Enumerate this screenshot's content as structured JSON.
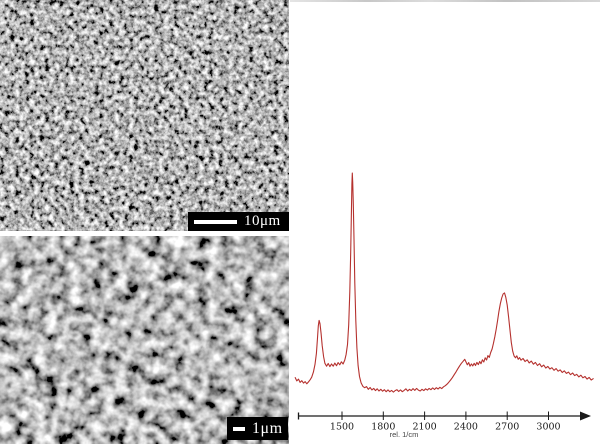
{
  "figure": {
    "sem_top": {
      "scale_bar_label": "10μm"
    },
    "sem_bottom": {
      "scale_bar_label": "1μm"
    }
  },
  "chart_data": {
    "type": "line",
    "title": "",
    "xlabel": "rel. 1/cm",
    "ylabel": "",
    "x_ticks": [
      1500,
      1800,
      2100,
      2400,
      2700,
      3000
    ],
    "xlim": [
      1160,
      3350
    ],
    "ylim": [
      0,
      110
    ],
    "grid": false,
    "legend": "none",
    "line_color": "#b5312e",
    "axis_color": "#1a1a1a",
    "series": [
      {
        "name": "Raman spectrum",
        "points": [
          [
            1160,
            7
          ],
          [
            1172,
            5.5
          ],
          [
            1184,
            6.3
          ],
          [
            1196,
            4.8
          ],
          [
            1208,
            5.6
          ],
          [
            1220,
            4.5
          ],
          [
            1232,
            5.2
          ],
          [
            1244,
            4.2
          ],
          [
            1256,
            5
          ],
          [
            1268,
            6
          ],
          [
            1280,
            7.2
          ],
          [
            1292,
            9.5
          ],
          [
            1304,
            13
          ],
          [
            1314,
            18
          ],
          [
            1322,
            25
          ],
          [
            1328,
            30.5
          ],
          [
            1334,
            33
          ],
          [
            1340,
            31.5
          ],
          [
            1348,
            27
          ],
          [
            1356,
            21.5
          ],
          [
            1366,
            16.5
          ],
          [
            1376,
            13.5
          ],
          [
            1388,
            12.2
          ],
          [
            1400,
            13.4
          ],
          [
            1412,
            12
          ],
          [
            1424,
            13.2
          ],
          [
            1436,
            12.2
          ],
          [
            1448,
            13.6
          ],
          [
            1460,
            12.4
          ],
          [
            1472,
            13.8
          ],
          [
            1484,
            12.8
          ],
          [
            1496,
            14.2
          ],
          [
            1508,
            13.2
          ],
          [
            1520,
            15
          ],
          [
            1530,
            17.5
          ],
          [
            1540,
            22
          ],
          [
            1549,
            31
          ],
          [
            1557,
            46
          ],
          [
            1563,
            64
          ],
          [
            1568,
            82
          ],
          [
            1572,
            95
          ],
          [
            1575,
            100
          ],
          [
            1578,
            96
          ],
          [
            1582,
            86
          ],
          [
            1587,
            70
          ],
          [
            1593,
            50
          ],
          [
            1600,
            33
          ],
          [
            1608,
            20.5
          ],
          [
            1617,
            12.5
          ],
          [
            1627,
            7.5
          ],
          [
            1639,
            4.6
          ],
          [
            1652,
            3
          ],
          [
            1665,
            2.4
          ],
          [
            1678,
            2.9
          ],
          [
            1691,
            1.7
          ],
          [
            1704,
            2.5
          ],
          [
            1717,
            1.4
          ],
          [
            1730,
            2.1
          ],
          [
            1743,
            1.1
          ],
          [
            1756,
            1.9
          ],
          [
            1769,
            0.9
          ],
          [
            1782,
            1.7
          ],
          [
            1795,
            0.8
          ],
          [
            1808,
            1.5
          ],
          [
            1821,
            0.6
          ],
          [
            1834,
            1.4
          ],
          [
            1847,
            0.6
          ],
          [
            1860,
            1.2
          ],
          [
            1873,
            0.4
          ],
          [
            1886,
            1.1
          ],
          [
            1899,
            1.5
          ],
          [
            1912,
            0.7
          ],
          [
            1925,
            1.4
          ],
          [
            1938,
            0.6
          ],
          [
            1951,
            1.2
          ],
          [
            1964,
            1.9
          ],
          [
            1977,
            0.9
          ],
          [
            1990,
            1.7
          ],
          [
            2003,
            1.1
          ],
          [
            2016,
            2
          ],
          [
            2029,
            1.2
          ],
          [
            2042,
            2.1
          ],
          [
            2055,
            1.3
          ],
          [
            2068,
            0.9
          ],
          [
            2081,
            1.7
          ],
          [
            2094,
            1.1
          ],
          [
            2107,
            1.9
          ],
          [
            2120,
            1.3
          ],
          [
            2133,
            2.1
          ],
          [
            2146,
            1.5
          ],
          [
            2159,
            2.3
          ],
          [
            2172,
            1.6
          ],
          [
            2185,
            2.4
          ],
          [
            2198,
            1.8
          ],
          [
            2211,
            2.6
          ],
          [
            2224,
            2
          ],
          [
            2237,
            2.8
          ],
          [
            2250,
            3.3
          ],
          [
            2263,
            4
          ],
          [
            2276,
            4.9
          ],
          [
            2289,
            5.9
          ],
          [
            2302,
            7
          ],
          [
            2315,
            8.3
          ],
          [
            2328,
            9.6
          ],
          [
            2341,
            11
          ],
          [
            2354,
            12.3
          ],
          [
            2367,
            13.5
          ],
          [
            2380,
            14.4
          ],
          [
            2391,
            15.3
          ],
          [
            2400,
            14.2
          ],
          [
            2410,
            12.8
          ],
          [
            2420,
            13.8
          ],
          [
            2430,
            12.2
          ],
          [
            2440,
            13.2
          ],
          [
            2450,
            12.3
          ],
          [
            2460,
            13.5
          ],
          [
            2470,
            12.5
          ],
          [
            2480,
            13.9
          ],
          [
            2490,
            12.9
          ],
          [
            2500,
            14.3
          ],
          [
            2510,
            13.3
          ],
          [
            2520,
            15.1
          ],
          [
            2530,
            14.1
          ],
          [
            2540,
            16
          ],
          [
            2550,
            15
          ],
          [
            2560,
            17
          ],
          [
            2570,
            16.2
          ],
          [
            2580,
            18.4
          ],
          [
            2590,
            20
          ],
          [
            2600,
            22.5
          ],
          [
            2610,
            25.5
          ],
          [
            2620,
            29
          ],
          [
            2630,
            33
          ],
          [
            2640,
            37
          ],
          [
            2650,
            40.5
          ],
          [
            2660,
            43.2
          ],
          [
            2670,
            45
          ],
          [
            2680,
            45.5
          ],
          [
            2690,
            43.5
          ],
          [
            2700,
            40
          ],
          [
            2710,
            34.5
          ],
          [
            2720,
            28.5
          ],
          [
            2730,
            23
          ],
          [
            2740,
            19
          ],
          [
            2750,
            16.8
          ],
          [
            2760,
            16
          ],
          [
            2770,
            16.9
          ],
          [
            2780,
            15.3
          ],
          [
            2790,
            16.1
          ],
          [
            2800,
            14.9
          ],
          [
            2815,
            15.7
          ],
          [
            2830,
            14.3
          ],
          [
            2845,
            15.1
          ],
          [
            2860,
            13.7
          ],
          [
            2875,
            14.5
          ],
          [
            2890,
            13.1
          ],
          [
            2905,
            13.9
          ],
          [
            2920,
            12.5
          ],
          [
            2935,
            13.3
          ],
          [
            2950,
            11.9
          ],
          [
            2965,
            12.7
          ],
          [
            2980,
            11.3
          ],
          [
            2995,
            12.1
          ],
          [
            3010,
            10.9
          ],
          [
            3025,
            11.5
          ],
          [
            3040,
            10.3
          ],
          [
            3055,
            11.1
          ],
          [
            3070,
            9.9
          ],
          [
            3085,
            10.5
          ],
          [
            3100,
            9.3
          ],
          [
            3115,
            10.1
          ],
          [
            3130,
            8.9
          ],
          [
            3145,
            9.5
          ],
          [
            3160,
            8.3
          ],
          [
            3175,
            9.1
          ],
          [
            3190,
            7.9
          ],
          [
            3205,
            8.5
          ],
          [
            3220,
            7.3
          ],
          [
            3235,
            8.1
          ],
          [
            3250,
            6.9
          ],
          [
            3265,
            7.5
          ],
          [
            3280,
            6.3
          ],
          [
            3295,
            7.1
          ],
          [
            3310,
            5.9
          ],
          [
            3325,
            6.5
          ]
        ]
      }
    ]
  }
}
